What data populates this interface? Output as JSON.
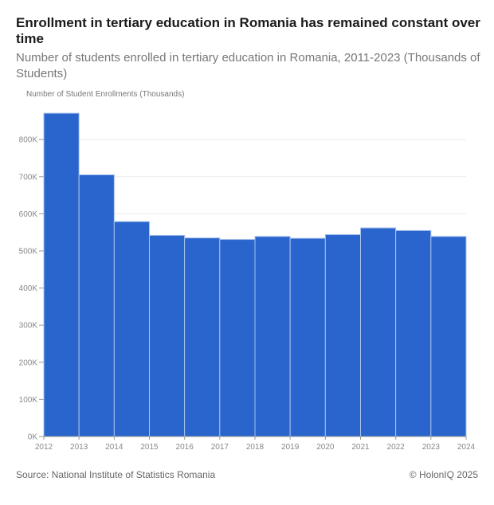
{
  "chart_data": {
    "type": "bar",
    "title": "Enrollment in tertiary education in Romania has remained constant over time",
    "subtitle": "Number of students enrolled in tertiary education in Romania, 2011-2023 (Thousands of Students)",
    "ylabel": "Number of Student Enrollments (Thousands)",
    "xlabel": "",
    "x_ticks": [
      "2012",
      "2013",
      "2014",
      "2015",
      "2016",
      "2017",
      "2018",
      "2019",
      "2020",
      "2021",
      "2022",
      "2023",
      "2024"
    ],
    "categories": [
      "2012",
      "2013",
      "2014",
      "2015",
      "2016",
      "2017",
      "2018",
      "2019",
      "2020",
      "2021",
      "2022",
      "2023"
    ],
    "values": [
      871,
      705,
      579,
      542,
      535,
      531,
      539,
      534,
      544,
      562,
      555,
      539
    ],
    "ylim": [
      0,
      880
    ],
    "y_ticks": [
      0,
      100,
      200,
      300,
      400,
      500,
      600,
      700,
      800
    ],
    "y_tick_labels": [
      "0K",
      "100K",
      "200K",
      "300K",
      "400K",
      "500K",
      "600K",
      "700K",
      "800K"
    ],
    "grid": true,
    "bar_color": "#2965cc"
  },
  "footer": {
    "source": "Source: National Institute of Statistics Romania",
    "credit": "© HolonIQ 2025"
  }
}
